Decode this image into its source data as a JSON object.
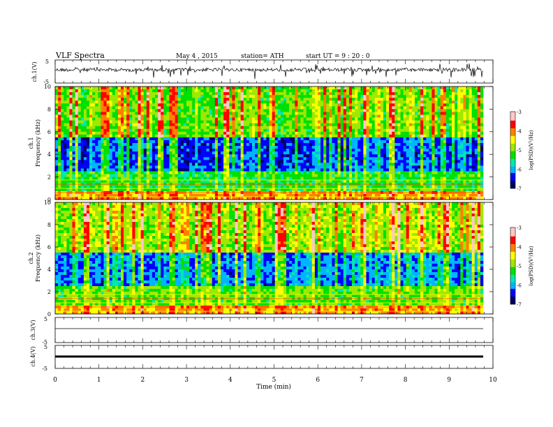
{
  "header": {
    "title": "VLF  Spectra",
    "date": "May 4   , 2015",
    "station": "station= ATH",
    "start": "start  UT =   9 : 20 : 0"
  },
  "chart_data": [
    {
      "type": "line",
      "panel": "ch1-waveform",
      "ylabel": "ch.1(V)",
      "ylim": [
        -5,
        5
      ],
      "yticks": [
        "5",
        "-5"
      ],
      "xlim": [
        0,
        10
      ],
      "series": [
        {
          "values": "noisy waveform centred near 0.5 V with spikes, spanning 0 to ~9.8 min"
        }
      ]
    },
    {
      "type": "heatmap",
      "panel": "ch1-spectrogram",
      "ylabel": "ch.1\nFrequency  (kHz)",
      "ylabel_line1": "ch.1",
      "ylabel_line2": "Frequency  (kHz)",
      "ylim": [
        0,
        10
      ],
      "yticks": [
        "0",
        "2",
        "4",
        "6",
        "8",
        "10"
      ],
      "xlim": [
        0,
        10
      ],
      "colorbar": {
        "label": "log(PSD)(V²/Hz)",
        "range": [
          -7,
          -3
        ],
        "ticks": [
          "-3",
          "-4",
          "-5",
          "-6",
          "-7"
        ]
      }
    },
    {
      "type": "heatmap",
      "panel": "ch2-spectrogram",
      "ylabel_line1": "ch.2",
      "ylabel_line2": "Frequency  (kHz)",
      "ylim": [
        0,
        10
      ],
      "yticks": [
        "0",
        "2",
        "4",
        "6",
        "8",
        "10"
      ],
      "xlim": [
        0,
        10
      ],
      "colorbar": {
        "label": "log(PSD)(V²/Hz)",
        "range": [
          -7,
          -3
        ],
        "ticks": [
          "-3",
          "-4",
          "-5",
          "-6",
          "-7"
        ]
      }
    },
    {
      "type": "line",
      "panel": "ch3-waveform",
      "ylabel": "ch.3(V)",
      "ylim": [
        -5,
        5
      ],
      "yticks": [
        "5",
        "-5"
      ],
      "series": [
        {
          "values": "flat trace near -0.5 V"
        }
      ]
    },
    {
      "type": "line",
      "panel": "ch4-waveform",
      "ylabel": "ch.4(V)",
      "ylim": [
        -5,
        5
      ],
      "yticks": [
        "5",
        "-5"
      ],
      "series": [
        {
          "values": "thick flat trace near -0.5 V"
        }
      ]
    }
  ],
  "xaxis": {
    "label": "Time  (min)",
    "ticks": [
      "0",
      "1",
      "2",
      "3",
      "4",
      "5",
      "6",
      "7",
      "8",
      "9",
      "10"
    ]
  },
  "colors": {
    "cmap": [
      "#000060",
      "#0000ff",
      "#00b4ff",
      "#00e8b0",
      "#00e000",
      "#a0e800",
      "#ffff00",
      "#ff8000",
      "#ff0000",
      "#ffc8c8",
      "#ffffff"
    ]
  }
}
